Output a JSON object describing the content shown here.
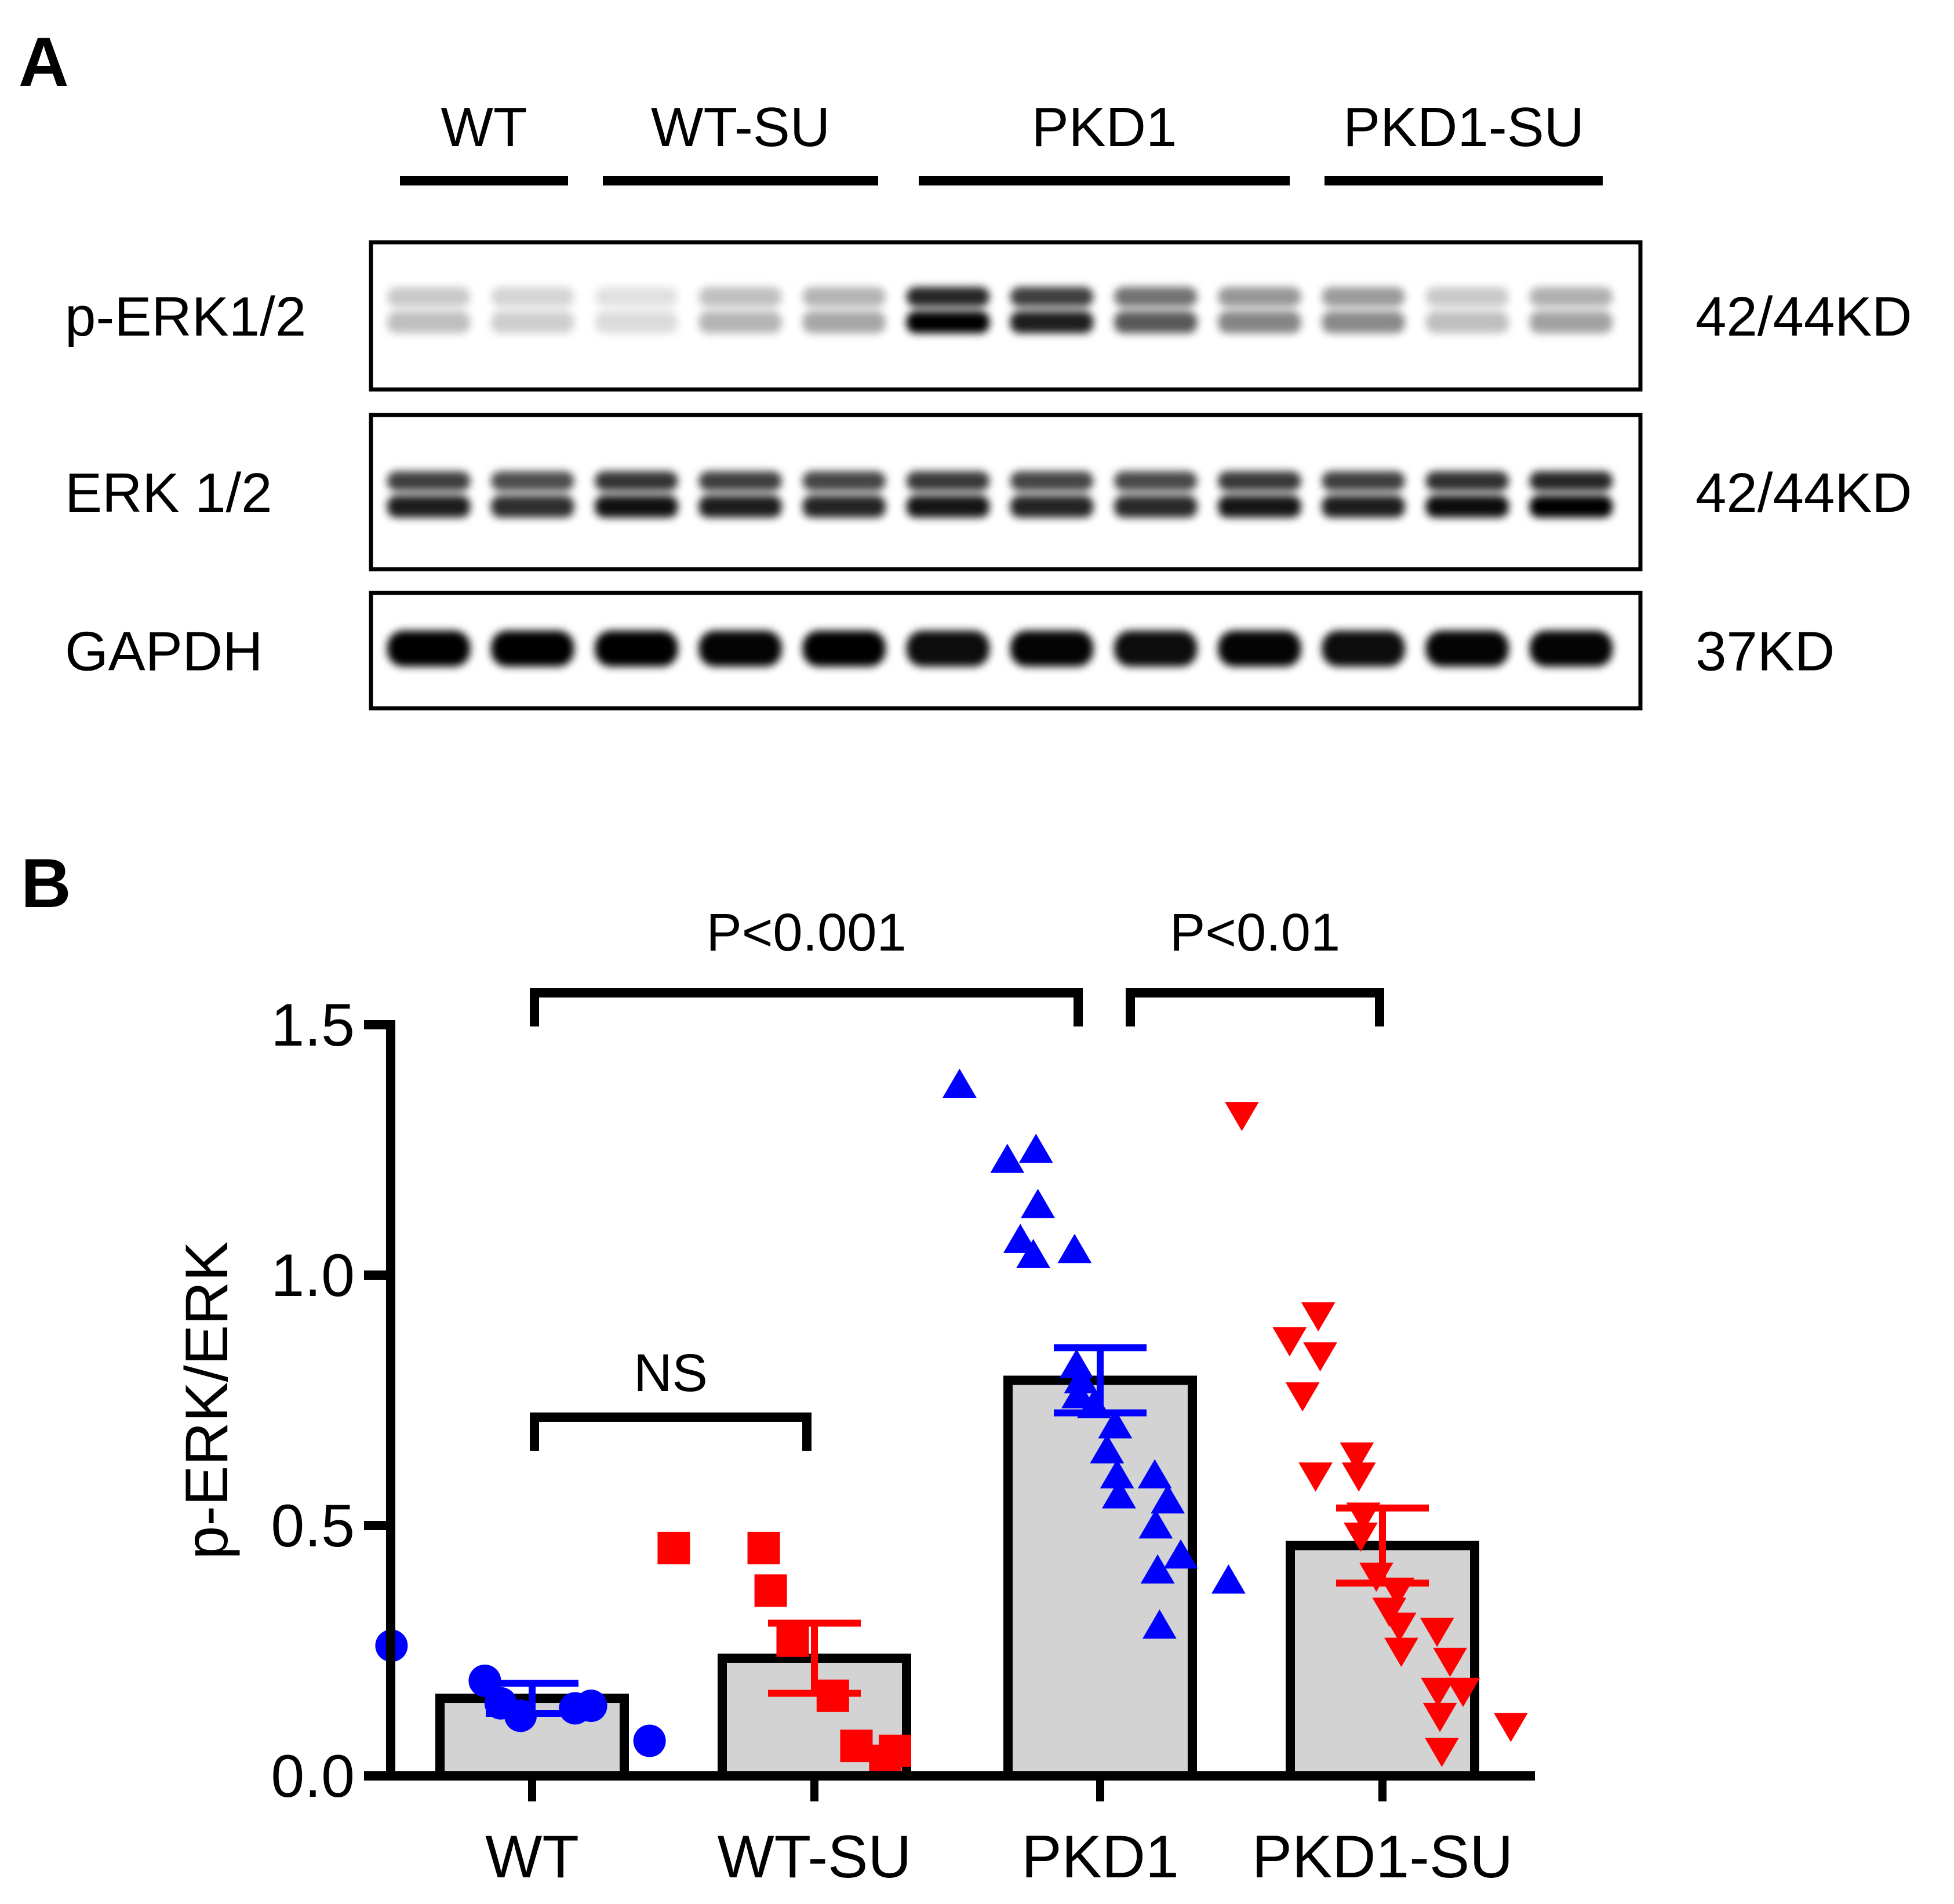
{
  "panels": {
    "a_letter": "A",
    "b_letter": "B"
  },
  "blot": {
    "groups": [
      "WT",
      "WT-SU",
      "PKD1",
      "PKD1-SU"
    ],
    "rows": [
      {
        "label": "p-ERK1/2",
        "size": "42/44KD"
      },
      {
        "label": "ERK 1/2",
        "size": "42/44KD"
      },
      {
        "label": "GAPDH",
        "size": "37KD"
      }
    ],
    "lane_intensity": {
      "p_erk": [
        0.18,
        0.12,
        0.06,
        0.22,
        0.28,
        1.0,
        0.85,
        0.6,
        0.42,
        0.4,
        0.18,
        0.3
      ],
      "erk": [
        0.85,
        0.78,
        0.9,
        0.85,
        0.82,
        0.88,
        0.82,
        0.8,
        0.88,
        0.85,
        0.92,
        1.0
      ],
      "gapdh": [
        1.0,
        1.0,
        1.0,
        0.95,
        0.98,
        0.92,
        0.95,
        0.92,
        0.95,
        0.92,
        0.95,
        0.95
      ]
    }
  },
  "chart_data": {
    "type": "bar",
    "title": "",
    "xlabel": "",
    "ylabel": "p-ERK/ERK",
    "ylim": [
      0,
      1.5
    ],
    "yticks": [
      "0.0",
      "0.5",
      "1.0",
      "1.5"
    ],
    "categories": [
      "WT",
      "WT-SU",
      "PKD1",
      "PKD1-SU"
    ],
    "values": [
      0.155,
      0.235,
      0.79,
      0.46
    ],
    "sem": [
      0.03,
      0.07,
      0.065,
      0.075
    ],
    "colors": [
      "#0000ff",
      "#ff0000",
      "#0000ff",
      "#ff0000"
    ],
    "markers": [
      "circle",
      "square",
      "triangle-up",
      "triangle-down"
    ],
    "bar_fill": "#d3d3d3",
    "points": [
      [
        0.26,
        0.19,
        0.145,
        0.12,
        0.135,
        0.14,
        0.07
      ],
      [
        0.455,
        0.455,
        0.37,
        0.27,
        0.16,
        0.06,
        0.05,
        0.03
      ],
      [
        1.38,
        1.25,
        1.23,
        1.14,
        1.07,
        1.05,
        1.04,
        0.82,
        0.79,
        0.76,
        0.74,
        0.7,
        0.65,
        0.6,
        0.6,
        0.56,
        0.55,
        0.5,
        0.44,
        0.41,
        0.39,
        0.3
      ],
      [
        1.32,
        0.92,
        0.87,
        0.84,
        0.76,
        0.64,
        0.6,
        0.6,
        0.52,
        0.48,
        0.4,
        0.37,
        0.33,
        0.3,
        0.29,
        0.25,
        0.23,
        0.17,
        0.17,
        0.12,
        0.1,
        0.05
      ]
    ],
    "annotations": [
      {
        "text": "NS",
        "from": "WT",
        "to": "WT-SU"
      },
      {
        "text": "P<0.001",
        "from": "WT",
        "to": "PKD1"
      },
      {
        "text": "P<0.01",
        "from": "PKD1",
        "to": "PKD1-SU"
      }
    ]
  }
}
